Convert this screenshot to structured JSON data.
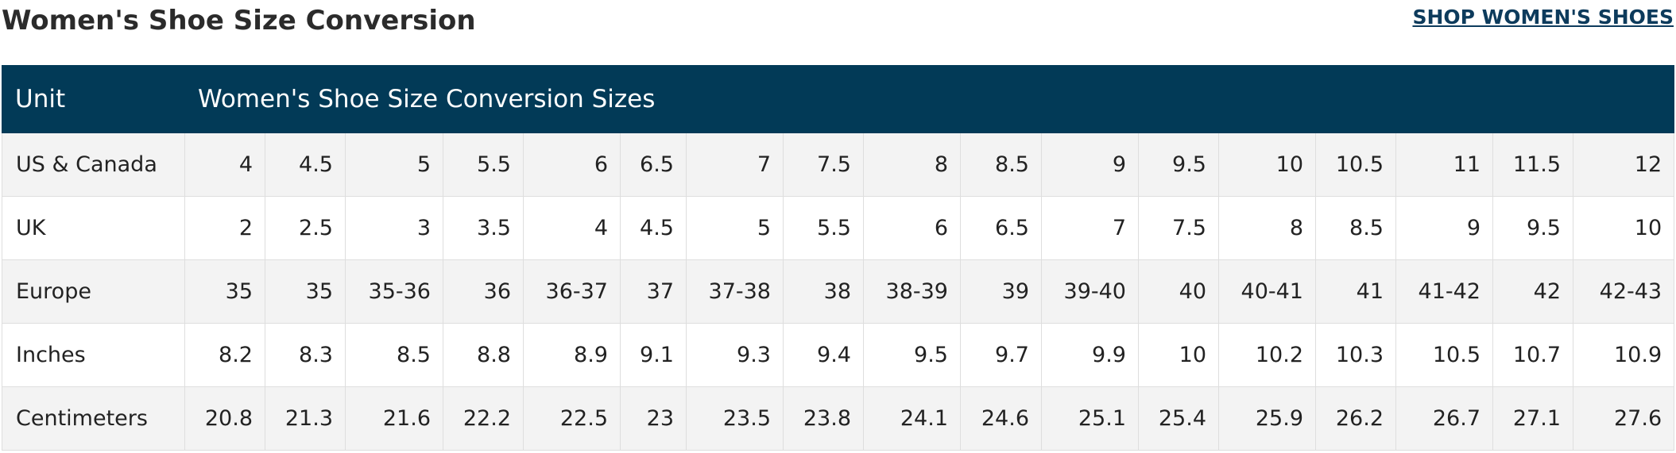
{
  "page": {
    "title": "Women's Shoe Size Conversion",
    "shop_link": "SHOP WOMEN'S SHOES"
  },
  "table": {
    "header": {
      "unit": "Unit",
      "sizes": "Women's Shoe Size Conversion Sizes"
    },
    "rows": [
      {
        "label": "US & Canada",
        "values": [
          "4",
          "4.5",
          "5",
          "5.5",
          "6",
          "6.5",
          "7",
          "7.5",
          "8",
          "8.5",
          "9",
          "9.5",
          "10",
          "10.5",
          "11",
          "11.5",
          "12"
        ]
      },
      {
        "label": "UK",
        "values": [
          "2",
          "2.5",
          "3",
          "3.5",
          "4",
          "4.5",
          "5",
          "5.5",
          "6",
          "6.5",
          "7",
          "7.5",
          "8",
          "8.5",
          "9",
          "9.5",
          "10"
        ]
      },
      {
        "label": "Europe",
        "values": [
          "35",
          "35",
          "35-36",
          "36",
          "36-37",
          "37",
          "37-38",
          "38",
          "38-39",
          "39",
          "39-40",
          "40",
          "40-41",
          "41",
          "41-42",
          "42",
          "42-43"
        ]
      },
      {
        "label": "Inches",
        "values": [
          "8.2",
          "8.3",
          "8.5",
          "8.8",
          "8.9",
          "9.1",
          "9.3",
          "9.4",
          "9.5",
          "9.7",
          "9.9",
          "10",
          "10.2",
          "10.3",
          "10.5",
          "10.7",
          "10.9"
        ]
      },
      {
        "label": "Centimeters",
        "values": [
          "20.8",
          "21.3",
          "21.6",
          "22.2",
          "22.5",
          "23",
          "23.5",
          "23.8",
          "24.1",
          "24.6",
          "25.1",
          "25.4",
          "25.9",
          "26.2",
          "26.7",
          "27.1",
          "27.6"
        ]
      }
    ],
    "colors": {
      "header_bg": "#023a57",
      "header_text": "#ffffff",
      "row_alt_bg": "#f3f3f3",
      "link": "#0d3b5c"
    }
  }
}
